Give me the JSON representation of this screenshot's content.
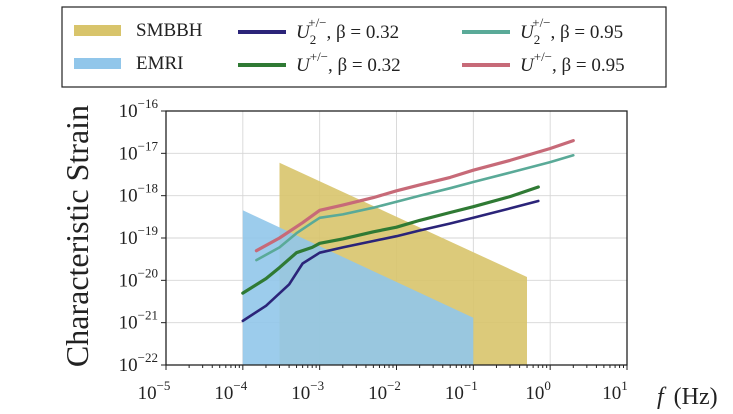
{
  "chart_data": {
    "type": "line",
    "title": "",
    "xlabel": "f (Hz)",
    "xlabel_var": "f",
    "xlabel_unit": "(Hz)",
    "ylabel": "Characteristic Strain",
    "xscale": "log",
    "yscale": "log",
    "xlim": [
      1e-05,
      10
    ],
    "ylim": [
      1e-22,
      1e-16
    ],
    "x_ticks": [
      {
        "base": "10",
        "exp": "−5",
        "value": 1e-05
      },
      {
        "base": "10",
        "exp": "−4",
        "value": 0.0001
      },
      {
        "base": "10",
        "exp": "−3",
        "value": 0.001
      },
      {
        "base": "10",
        "exp": "−2",
        "value": 0.01
      },
      {
        "base": "10",
        "exp": "−1",
        "value": 0.1
      },
      {
        "base": "10",
        "exp": "0",
        "value": 1
      },
      {
        "base": "10",
        "exp": "1",
        "value": 10
      }
    ],
    "y_ticks": [
      {
        "base": "10",
        "exp": "−16",
        "value": 1e-16
      },
      {
        "base": "10",
        "exp": "−17",
        "value": 1e-17
      },
      {
        "base": "10",
        "exp": "−18",
        "value": 1e-18
      },
      {
        "base": "10",
        "exp": "−19",
        "value": 1e-19
      },
      {
        "base": "10",
        "exp": "−20",
        "value": 1e-20
      },
      {
        "base": "10",
        "exp": "−21",
        "value": 1e-21
      },
      {
        "base": "10",
        "exp": "−22",
        "value": 1e-22
      }
    ],
    "grid": true,
    "legend_position": "top",
    "areas": [
      {
        "name": "SMBBH",
        "color": "#d8c46b",
        "polygon": [
          [
            0.0003,
            6e-18
          ],
          [
            0.5,
            1.2e-20
          ],
          [
            0.5,
            1e-22
          ],
          [
            0.0003,
            1e-22
          ]
        ]
      },
      {
        "name": "EMRI",
        "color": "#91c6ea",
        "polygon": [
          [
            0.0001,
            4.5e-19
          ],
          [
            0.1,
            1.3e-21
          ],
          [
            0.1,
            1e-22
          ],
          [
            0.0001,
            1e-22
          ]
        ]
      }
    ],
    "series": [
      {
        "name": "U2 +/−, β = 0.32",
        "legend": {
          "sym": "U",
          "sub": "2",
          "sup": "+/−",
          "beta": ", β = 0.32"
        },
        "color": "#2b2479",
        "x": [
          0.0001,
          0.0002,
          0.0004,
          0.0006,
          0.001,
          0.002,
          0.005,
          0.01,
          0.02,
          0.05,
          0.1,
          0.3,
          0.7
        ],
        "y": [
          1.1e-21,
          2.5e-21,
          8e-21,
          2.5e-20,
          4.5e-20,
          6e-20,
          8.5e-20,
          1.1e-19,
          1.5e-19,
          2.2e-19,
          3e-19,
          5e-19,
          7.5e-19
        ]
      },
      {
        "name": "U +/−, β = 0.32",
        "legend": {
          "sym": "U",
          "sub": "",
          "sup": "+/−",
          "beta": ", β = 0.32"
        },
        "color": "#2f7a34",
        "x": [
          0.0001,
          0.0002,
          0.0003,
          0.0005,
          0.0008,
          0.001,
          0.002,
          0.005,
          0.01,
          0.02,
          0.05,
          0.1,
          0.3,
          0.7
        ],
        "y": [
          5e-21,
          1.1e-20,
          2e-20,
          4.5e-20,
          6e-20,
          7.5e-20,
          9.5e-20,
          1.4e-19,
          1.8e-19,
          2.6e-19,
          4e-19,
          5.5e-19,
          9.5e-19,
          1.6e-18
        ]
      },
      {
        "name": "U2 +/−, β = 0.95",
        "legend": {
          "sym": "U",
          "sub": "2",
          "sup": "+/−",
          "beta": ", β = 0.95"
        },
        "color": "#5aaa98",
        "x": [
          0.00015,
          0.0003,
          0.0005,
          0.0008,
          0.001,
          0.002,
          0.005,
          0.01,
          0.02,
          0.05,
          0.1,
          0.3,
          1,
          2
        ],
        "y": [
          3e-20,
          6e-20,
          1.3e-19,
          2.3e-19,
          3e-19,
          3.6e-19,
          5.2e-19,
          7.2e-19,
          1e-18,
          1.5e-18,
          2.1e-18,
          3.5e-18,
          6.2e-18,
          9e-18
        ]
      },
      {
        "name": "U +/−, β = 0.95",
        "legend": {
          "sym": "U",
          "sub": "",
          "sup": "+/−",
          "beta": ", β = 0.95"
        },
        "color": "#c76a78",
        "x": [
          0.00015,
          0.0003,
          0.0006,
          0.001,
          0.002,
          0.005,
          0.01,
          0.02,
          0.05,
          0.1,
          0.3,
          1,
          2
        ],
        "y": [
          5e-20,
          1e-19,
          2.3e-19,
          4.5e-19,
          6e-19,
          9e-19,
          1.3e-18,
          1.8e-18,
          2.7e-18,
          4e-18,
          6.8e-18,
          1.3e-17,
          2e-17
        ]
      }
    ]
  }
}
